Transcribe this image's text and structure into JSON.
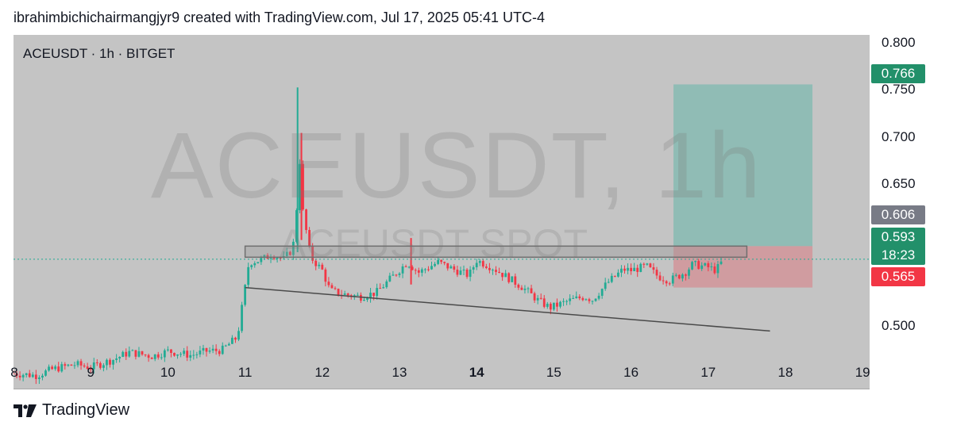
{
  "header": {
    "text": "ibrahimbichichairmangjyr9 created with TradingView.com, Jul 17, 2025 05:41 UTC-4"
  },
  "symbol_line": "ACEUSDT · 1h · BITGET",
  "watermark": {
    "main": "ACEUSDT, 1h",
    "sub": "ACEUSDT SPOT"
  },
  "price_axis": [
    "0.800",
    "0.750",
    "0.700",
    "0.650",
    "0.500"
  ],
  "price_tags": {
    "target": {
      "text": "0.766",
      "color": "#22906a"
    },
    "entry": {
      "text": "0.606",
      "color": "#787b86"
    },
    "current": {
      "text": "0.593",
      "color": "#22906a"
    },
    "countdown": {
      "text": "18:23",
      "color": "#22906a"
    },
    "stop": {
      "text": "0.565",
      "color": "#f23645"
    }
  },
  "time_axis": [
    {
      "label": "8",
      "bold": false
    },
    {
      "label": "9",
      "bold": false
    },
    {
      "label": "10",
      "bold": false
    },
    {
      "label": "11",
      "bold": false
    },
    {
      "label": "12",
      "bold": false
    },
    {
      "label": "13",
      "bold": false
    },
    {
      "label": "14",
      "bold": true
    },
    {
      "label": "15",
      "bold": false
    },
    {
      "label": "16",
      "bold": false
    },
    {
      "label": "17",
      "bold": false
    },
    {
      "label": "18",
      "bold": false
    },
    {
      "label": "19",
      "bold": false
    }
  ],
  "footer": {
    "brand": "TradingView",
    "logo_icon": "tradingview-logo-icon"
  },
  "colors": {
    "up": "#22ab94",
    "down": "#f23645",
    "chart_bg": "#c4c4c4"
  },
  "chart_data": {
    "type": "candlestick",
    "symbol": "ACEUSDT",
    "interval": "1h",
    "exchange": "BITGET",
    "ylim": [
      0.465,
      0.815
    ],
    "y_ticks": [
      0.5,
      0.65,
      0.7,
      0.75,
      0.8
    ],
    "x_ticks": [
      "8",
      "9",
      "10",
      "11",
      "12",
      "13",
      "14",
      "15",
      "16",
      "17",
      "18",
      "19"
    ],
    "x_range": [
      8,
      19
    ],
    "close_path": [
      [
        8.0,
        0.48
      ],
      [
        8.3,
        0.478
      ],
      [
        8.5,
        0.484
      ],
      [
        8.8,
        0.489
      ],
      [
        9.0,
        0.486
      ],
      [
        9.3,
        0.494
      ],
      [
        9.5,
        0.501
      ],
      [
        9.8,
        0.497
      ],
      [
        10.0,
        0.502
      ],
      [
        10.3,
        0.498
      ],
      [
        10.5,
        0.502
      ],
      [
        10.7,
        0.503
      ],
      [
        10.9,
        0.516
      ],
      [
        11.0,
        0.565
      ],
      [
        11.05,
        0.59
      ],
      [
        11.2,
        0.592
      ],
      [
        11.35,
        0.598
      ],
      [
        11.5,
        0.593
      ],
      [
        11.6,
        0.602
      ],
      [
        11.65,
        0.615
      ],
      [
        11.7,
        0.7
      ],
      [
        11.75,
        0.64
      ],
      [
        11.85,
        0.595
      ],
      [
        12.0,
        0.582
      ],
      [
        12.1,
        0.562
      ],
      [
        12.3,
        0.558
      ],
      [
        12.5,
        0.556
      ],
      [
        12.7,
        0.56
      ],
      [
        12.9,
        0.575
      ],
      [
        13.1,
        0.59
      ],
      [
        13.25,
        0.58
      ],
      [
        13.5,
        0.59
      ],
      [
        13.7,
        0.583
      ],
      [
        13.9,
        0.577
      ],
      [
        14.0,
        0.592
      ],
      [
        14.2,
        0.585
      ],
      [
        14.4,
        0.575
      ],
      [
        14.6,
        0.565
      ],
      [
        14.8,
        0.552
      ],
      [
        14.95,
        0.545
      ],
      [
        15.2,
        0.552
      ],
      [
        15.4,
        0.556
      ],
      [
        15.5,
        0.553
      ],
      [
        15.7,
        0.57
      ],
      [
        15.9,
        0.583
      ],
      [
        16.0,
        0.582
      ],
      [
        16.2,
        0.586
      ],
      [
        16.35,
        0.576
      ],
      [
        16.5,
        0.572
      ],
      [
        16.7,
        0.58
      ],
      [
        16.8,
        0.588
      ],
      [
        17.0,
        0.585
      ],
      [
        17.1,
        0.582
      ],
      [
        17.2,
        0.593
      ]
    ],
    "spikes": [
      {
        "x": 11.68,
        "high": 0.763,
        "low": 0.6
      },
      {
        "x": 11.73,
        "high": 0.718,
        "low": 0.612
      },
      {
        "x": 13.15,
        "high": 0.614,
        "low": 0.568
      }
    ],
    "annotations": {
      "resistance_zone": {
        "x_start": 11.0,
        "x_end": 17.5,
        "top": 0.606,
        "bottom": 0.595
      },
      "trendline": {
        "x1": 11.0,
        "y1": 0.565,
        "x2": 17.8,
        "y2": 0.522
      },
      "long_position": {
        "x_start": 16.55,
        "x_end": 18.35,
        "entry": 0.606,
        "target": 0.766,
        "stop": 0.565
      },
      "last_price": 0.593
    }
  }
}
